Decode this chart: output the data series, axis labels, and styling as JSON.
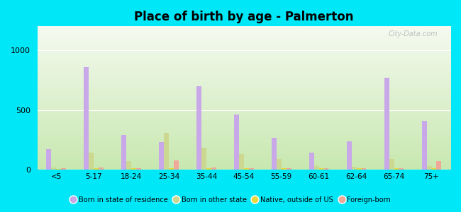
{
  "title": "Place of birth by age - Palmerton",
  "categories": [
    "<5",
    "5-17",
    "18-24",
    "25-34",
    "35-44",
    "45-54",
    "55-59",
    "60-61",
    "62-64",
    "65-74",
    "75+"
  ],
  "series": {
    "Born in state of residence": [
      170,
      860,
      290,
      230,
      700,
      460,
      270,
      140,
      240,
      770,
      410
    ],
    "Born in other state": [
      20,
      140,
      70,
      310,
      185,
      130,
      90,
      30,
      25,
      90,
      30
    ],
    "Native, outside of US": [
      5,
      10,
      10,
      15,
      10,
      10,
      10,
      10,
      10,
      10,
      10
    ],
    "Foreign-born": [
      10,
      20,
      15,
      80,
      20,
      15,
      10,
      10,
      10,
      10,
      70
    ]
  },
  "colors": {
    "Born in state of residence": "#c8a8e8",
    "Born in other state": "#ccd890",
    "Native, outside of US": "#e8d840",
    "Foreign-born": "#f0a898"
  },
  "ylim": [
    0,
    1200
  ],
  "yticks": [
    0,
    500,
    1000
  ],
  "bg_top": "#f5faf0",
  "bg_bottom": "#c8e8b0",
  "figure_bg": "#00e8f8",
  "bar_width": 0.13,
  "watermark": "City-Data.com"
}
